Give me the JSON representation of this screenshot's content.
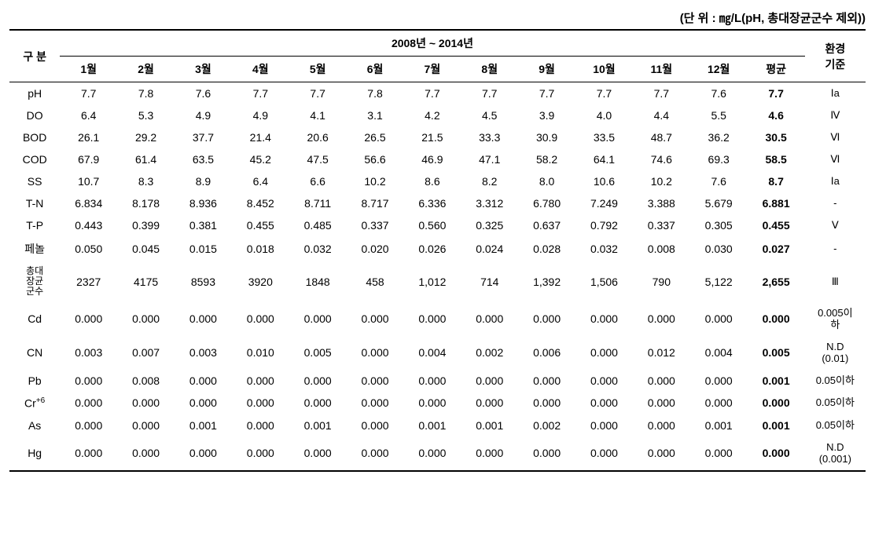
{
  "unit_note": "(단 위 : ㎎/L(pH, 총대장균군수 제외))",
  "header": {
    "gubun": "구 분",
    "period": "2008년 ~ 2014년",
    "std": "환경\n기준",
    "months": [
      "1월",
      "2월",
      "3월",
      "4월",
      "5월",
      "6월",
      "7월",
      "8월",
      "9월",
      "10월",
      "11월",
      "12월",
      "평균"
    ]
  },
  "rows": [
    {
      "label": "pH",
      "vals": [
        "7.7",
        "7.8",
        "7.6",
        "7.7",
        "7.7",
        "7.8",
        "7.7",
        "7.7",
        "7.7",
        "7.7",
        "7.7",
        "7.6"
      ],
      "avg": "7.7",
      "std": "Ⅰa"
    },
    {
      "label": "DO",
      "vals": [
        "6.4",
        "5.3",
        "4.9",
        "4.9",
        "4.1",
        "3.1",
        "4.2",
        "4.5",
        "3.9",
        "4.0",
        "4.4",
        "5.5"
      ],
      "avg": "4.6",
      "std": "Ⅳ"
    },
    {
      "label": "BOD",
      "vals": [
        "26.1",
        "29.2",
        "37.7",
        "21.4",
        "20.6",
        "26.5",
        "21.5",
        "33.3",
        "30.9",
        "33.5",
        "48.7",
        "36.2"
      ],
      "avg": "30.5",
      "std": "Ⅵ"
    },
    {
      "label": "COD",
      "vals": [
        "67.9",
        "61.4",
        "63.5",
        "45.2",
        "47.5",
        "56.6",
        "46.9",
        "47.1",
        "58.2",
        "64.1",
        "74.6",
        "69.3"
      ],
      "avg": "58.5",
      "std": "Ⅵ"
    },
    {
      "label": "SS",
      "vals": [
        "10.7",
        "8.3",
        "8.9",
        "6.4",
        "6.6",
        "10.2",
        "8.6",
        "8.2",
        "8.0",
        "10.6",
        "10.2",
        "7.6"
      ],
      "avg": "8.7",
      "std": "Ⅰa"
    },
    {
      "label": "T-N",
      "vals": [
        "6.834",
        "8.178",
        "8.936",
        "8.452",
        "8.711",
        "8.717",
        "6.336",
        "3.312",
        "6.780",
        "7.249",
        "3.388",
        "5.679"
      ],
      "avg": "6.881",
      "std": "-"
    },
    {
      "label": "T-P",
      "vals": [
        "0.443",
        "0.399",
        "0.381",
        "0.455",
        "0.485",
        "0.337",
        "0.560",
        "0.325",
        "0.637",
        "0.792",
        "0.337",
        "0.305"
      ],
      "avg": "0.455",
      "std": "Ⅴ"
    },
    {
      "label": "페놀",
      "vals": [
        "0.050",
        "0.045",
        "0.015",
        "0.018",
        "0.032",
        "0.020",
        "0.026",
        "0.024",
        "0.028",
        "0.032",
        "0.008",
        "0.030"
      ],
      "avg": "0.027",
      "std": "-"
    },
    {
      "label": "총대\n장균\n군수",
      "tight": true,
      "vals": [
        "2327",
        "4175",
        "8593",
        "3920",
        "1848",
        "458",
        "1,012",
        "714",
        "1,392",
        "1,506",
        "790",
        "5,122"
      ],
      "avg": "2,655",
      "std": "Ⅲ"
    },
    {
      "label": "Cd",
      "vals": [
        "0.000",
        "0.000",
        "0.000",
        "0.000",
        "0.000",
        "0.000",
        "0.000",
        "0.000",
        "0.000",
        "0.000",
        "0.000",
        "0.000"
      ],
      "avg": "0.000",
      "std": "0.005이\n하"
    },
    {
      "label": "CN",
      "vals": [
        "0.003",
        "0.007",
        "0.003",
        "0.010",
        "0.005",
        "0.000",
        "0.004",
        "0.002",
        "0.006",
        "0.000",
        "0.012",
        "0.004"
      ],
      "avg": "0.005",
      "std": "N.D\n(0.01)"
    },
    {
      "label": "Pb",
      "vals": [
        "0.000",
        "0.008",
        "0.000",
        "0.000",
        "0.000",
        "0.000",
        "0.000",
        "0.000",
        "0.000",
        "0.000",
        "0.000",
        "0.000"
      ],
      "avg": "0.001",
      "std": "0.05이하"
    },
    {
      "label": "Cr⁺⁶",
      "html": true,
      "labelHtml": "Cr<sup>+6</sup>",
      "vals": [
        "0.000",
        "0.000",
        "0.000",
        "0.000",
        "0.000",
        "0.000",
        "0.000",
        "0.000",
        "0.000",
        "0.000",
        "0.000",
        "0.000"
      ],
      "avg": "0.000",
      "std": "0.05이하"
    },
    {
      "label": "As",
      "vals": [
        "0.000",
        "0.000",
        "0.001",
        "0.000",
        "0.001",
        "0.000",
        "0.001",
        "0.001",
        "0.002",
        "0.000",
        "0.000",
        "0.001"
      ],
      "avg": "0.001",
      "std": "0.05이하"
    },
    {
      "label": "Hg",
      "vals": [
        "0.000",
        "0.000",
        "0.000",
        "0.000",
        "0.000",
        "0.000",
        "0.000",
        "0.000",
        "0.000",
        "0.000",
        "0.000",
        "0.000"
      ],
      "avg": "0.000",
      "std": "N.D\n(0.001)"
    }
  ]
}
